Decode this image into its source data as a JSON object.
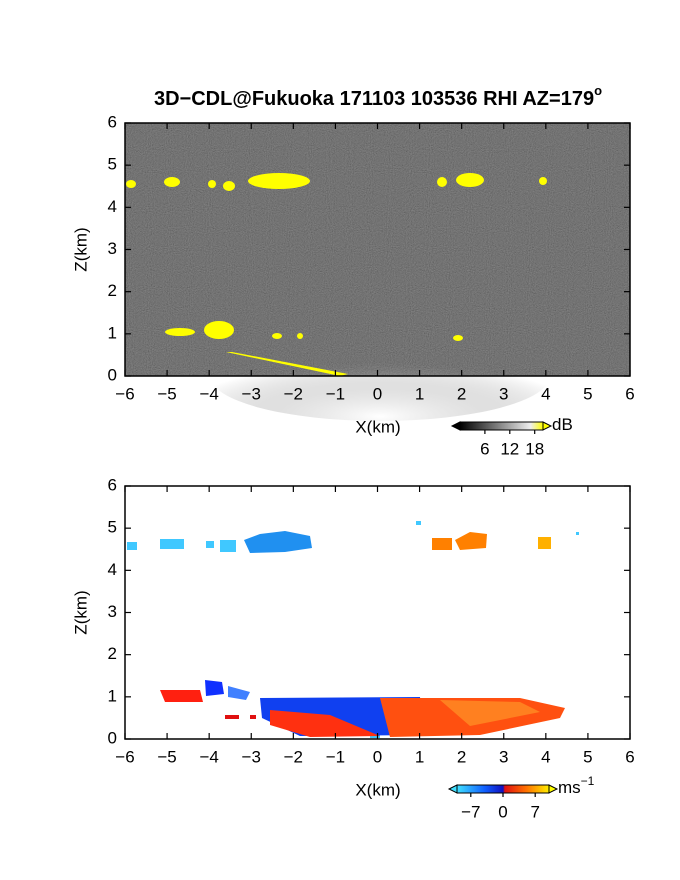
{
  "chart_data": [
    {
      "type": "image",
      "title": "3D−CDL@Fukuoka 171103 103536 RHI AZ=179",
      "title_superscript": "o",
      "x_label": "X(km)",
      "y_label": "Z(km)",
      "xlim": [
        -6,
        6
      ],
      "ylim": [
        0,
        6
      ],
      "xticks": [
        {
          "value": -6,
          "label": "−6"
        },
        {
          "value": -5,
          "label": "−5"
        },
        {
          "value": -4,
          "label": "−4"
        },
        {
          "value": -3,
          "label": "−3"
        },
        {
          "value": -2,
          "label": "−2"
        },
        {
          "value": -1,
          "label": "−1"
        },
        0,
        1,
        2,
        3,
        4,
        5,
        6
      ],
      "yticks": [
        0,
        1,
        2,
        3,
        4,
        5,
        6
      ],
      "colorbar": {
        "clim": [
          0,
          20
        ],
        "ticks": [
          6,
          12,
          18
        ],
        "unit": "dB"
      }
    },
    {
      "type": "image",
      "x_label": "X(km)",
      "y_label": "Z(km)",
      "xlim": [
        -6,
        6
      ],
      "ylim": [
        0,
        6
      ],
      "xticks": [
        {
          "value": -6,
          "label": "−6"
        },
        {
          "value": -5,
          "label": "−5"
        },
        {
          "value": -4,
          "label": "−4"
        },
        {
          "value": -3,
          "label": "−3"
        },
        {
          "value": -2,
          "label": "−2"
        },
        {
          "value": -1,
          "label": "−1"
        },
        0,
        1,
        2,
        3,
        4,
        5,
        6
      ],
      "yticks": [
        0,
        1,
        2,
        3,
        4,
        5,
        6
      ],
      "colorbar": {
        "clim": [
          -10,
          10
        ],
        "ticks": [
          {
            "value": -7,
            "label": "−7"
          },
          0,
          7
        ],
        "unit": "ms",
        "unit_superscript": "−1"
      }
    }
  ]
}
